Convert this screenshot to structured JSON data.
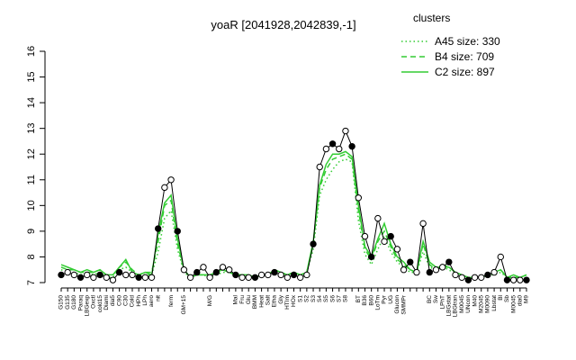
{
  "chart_data": {
    "type": "line",
    "title": "yoaR [2041928,2042839,-1]",
    "legend_title": "clusters",
    "categories": [
      "G150",
      "G135",
      "G180",
      "Paraq",
      "LBGexp",
      "Oxctl",
      "cold15",
      "Diami",
      "dia5",
      "C90",
      "C30",
      "Cold",
      "HPh",
      "LPh",
      "aero",
      "nit",
      null,
      "ferm",
      null,
      "GM+15",
      null,
      null,
      null,
      "M/G",
      null,
      null,
      null,
      "Mal",
      "Fru",
      "Glu",
      "BMM",
      "Heat",
      "Salt",
      "Etha",
      "Gly",
      "HTIm",
      "HOx",
      "S1",
      "S2",
      "S3",
      "S4",
      "S5",
      "S6",
      "S7",
      "S8",
      null,
      "BT",
      "B36",
      "B60",
      "LoTm",
      "Pyr",
      "UG",
      "Glucon",
      "SMMPr",
      null,
      null,
      null,
      "BC",
      "Sw",
      "LPhT",
      "LBGstat",
      "LBGtran",
      "M0045",
      "UNcon",
      "M40",
      "M2045",
      "M0090",
      "Lbstat",
      "Bl",
      "Sb",
      "M0045",
      "dia0",
      "M9"
    ],
    "values": [
      7.3,
      7.4,
      7.3,
      7.2,
      7.3,
      7.2,
      7.3,
      7.2,
      7.1,
      7.4,
      7.3,
      7.3,
      7.2,
      7.2,
      7.2,
      9.1,
      10.7,
      11.0,
      9.0,
      7.5,
      7.2,
      7.4,
      7.6,
      7.2,
      7.4,
      7.6,
      7.5,
      7.3,
      7.2,
      7.2,
      7.2,
      7.3,
      7.3,
      7.4,
      7.3,
      7.2,
      7.3,
      7.2,
      7.3,
      8.5,
      11.5,
      12.2,
      12.4,
      12.2,
      12.9,
      12.3,
      10.3,
      8.8,
      8.0,
      9.5,
      8.6,
      8.8,
      8.3,
      7.5,
      7.8,
      7.4,
      9.3,
      7.4,
      7.5,
      7.6,
      7.8,
      7.3,
      7.2,
      7.1,
      7.2,
      7.2,
      7.3,
      7.4,
      8.0,
      7.1,
      7.1,
      7.1,
      7.1
    ],
    "color": "#000000",
    "series": [
      {
        "name": "A45 size: 330",
        "color": "#33cc33",
        "dash": "dotted",
        "values": [
          7.5,
          7.4,
          7.4,
          7.3,
          7.4,
          7.3,
          7.4,
          7.2,
          7.2,
          7.5,
          7.6,
          7.4,
          7.3,
          7.3,
          7.3,
          8.2,
          9.5,
          9.8,
          8.3,
          7.4,
          7.2,
          7.3,
          7.3,
          7.2,
          7.3,
          7.4,
          7.4,
          7.3,
          7.3,
          7.2,
          7.2,
          7.3,
          7.3,
          7.5,
          7.3,
          7.3,
          7.4,
          7.3,
          7.4,
          8.3,
          10.4,
          11.0,
          11.4,
          11.7,
          11.8,
          11.7,
          9.4,
          8.1,
          7.7,
          8.3,
          8.8,
          8.2,
          7.8,
          7.6,
          7.4,
          7.4,
          8.2,
          7.6,
          7.5,
          7.6,
          7.5,
          7.3,
          7.2,
          7.2,
          7.2,
          7.2,
          7.3,
          7.3,
          7.4,
          7.2,
          7.2,
          7.2,
          7.3
        ]
      },
      {
        "name": "B4 size: 709",
        "color": "#33cc33",
        "dash": "dashed",
        "values": [
          7.6,
          7.5,
          7.5,
          7.4,
          7.4,
          7.4,
          7.5,
          7.3,
          7.3,
          7.6,
          7.8,
          7.5,
          7.3,
          7.4,
          7.4,
          8.6,
          10.0,
          10.2,
          8.5,
          7.5,
          7.2,
          7.3,
          7.3,
          7.2,
          7.4,
          7.5,
          7.4,
          7.3,
          7.3,
          7.3,
          7.2,
          7.3,
          7.3,
          7.5,
          7.4,
          7.3,
          7.4,
          7.3,
          7.4,
          8.5,
          10.7,
          11.4,
          11.8,
          11.9,
          12.0,
          11.8,
          9.8,
          8.3,
          7.9,
          8.6,
          9.0,
          8.4,
          7.9,
          7.7,
          7.5,
          7.4,
          8.5,
          7.7,
          7.5,
          7.7,
          7.6,
          7.4,
          7.3,
          7.2,
          7.2,
          7.2,
          7.3,
          7.4,
          7.5,
          7.2,
          7.2,
          7.2,
          7.3
        ]
      },
      {
        "name": "C2 size: 897",
        "color": "#33cc33",
        "dash": "solid",
        "values": [
          7.7,
          7.6,
          7.5,
          7.4,
          7.5,
          7.4,
          7.5,
          7.3,
          7.3,
          7.6,
          7.9,
          7.4,
          7.3,
          7.4,
          7.3,
          8.9,
          10.1,
          10.4,
          8.7,
          7.5,
          7.2,
          7.3,
          7.3,
          7.3,
          7.4,
          7.5,
          7.4,
          7.3,
          7.3,
          7.3,
          7.2,
          7.3,
          7.3,
          7.5,
          7.4,
          7.3,
          7.4,
          7.3,
          7.4,
          8.6,
          10.8,
          11.6,
          12.0,
          12.0,
          12.1,
          11.9,
          10.0,
          8.4,
          8.0,
          8.7,
          9.3,
          8.5,
          8.0,
          7.8,
          7.5,
          7.4,
          8.6,
          7.8,
          7.6,
          7.6,
          7.6,
          7.4,
          7.3,
          7.2,
          7.2,
          7.2,
          7.3,
          7.4,
          7.5,
          7.2,
          7.3,
          7.2,
          7.3
        ]
      }
    ],
    "ylim": [
      7,
      16
    ],
    "yticks": [
      7,
      8,
      9,
      10,
      11,
      12,
      13,
      14,
      15,
      16
    ]
  }
}
